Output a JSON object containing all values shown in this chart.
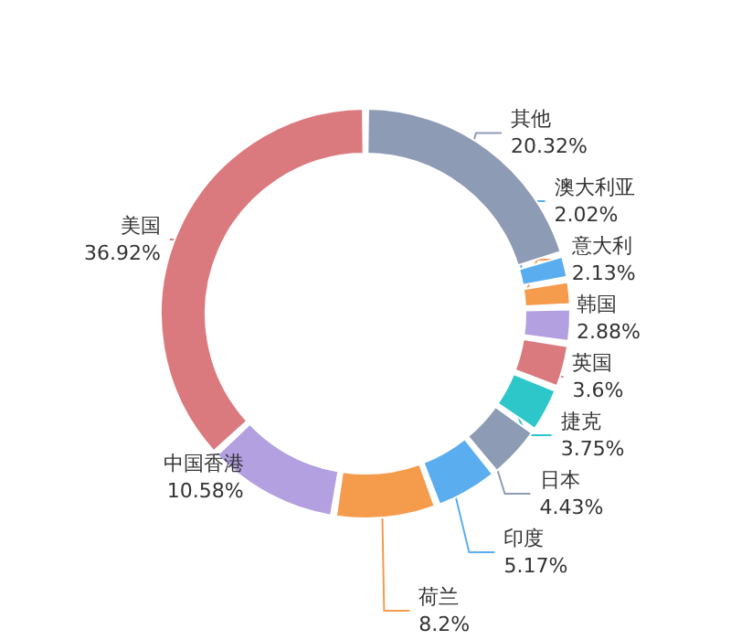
{
  "chart_data": {
    "type": "donut",
    "categories": [
      "其他",
      "澳大利亚",
      "意大利",
      "韩国",
      "英国",
      "捷克",
      "日本",
      "印度",
      "荷兰",
      "中国香港",
      "美国"
    ],
    "values": [
      20.32,
      2.02,
      2.13,
      2.88,
      3.6,
      3.75,
      4.43,
      5.17,
      8.2,
      10.58,
      36.92
    ],
    "colors": [
      "#8e9bb5",
      "#5aaef0",
      "#f59b4c",
      "#b3a0e0",
      "#db7a7e",
      "#2ec7c9",
      "#8e9bb5",
      "#5aaef0",
      "#f59b4c",
      "#b3a0e0",
      "#db7a7e"
    ],
    "value_labels": [
      "20.32%",
      "2.02%",
      "2.13%",
      "2.88%",
      "3.6%",
      "3.75%",
      "4.43%",
      "5.17%",
      "8.2%",
      "10.58%",
      "36.92%"
    ],
    "legend": false
  }
}
